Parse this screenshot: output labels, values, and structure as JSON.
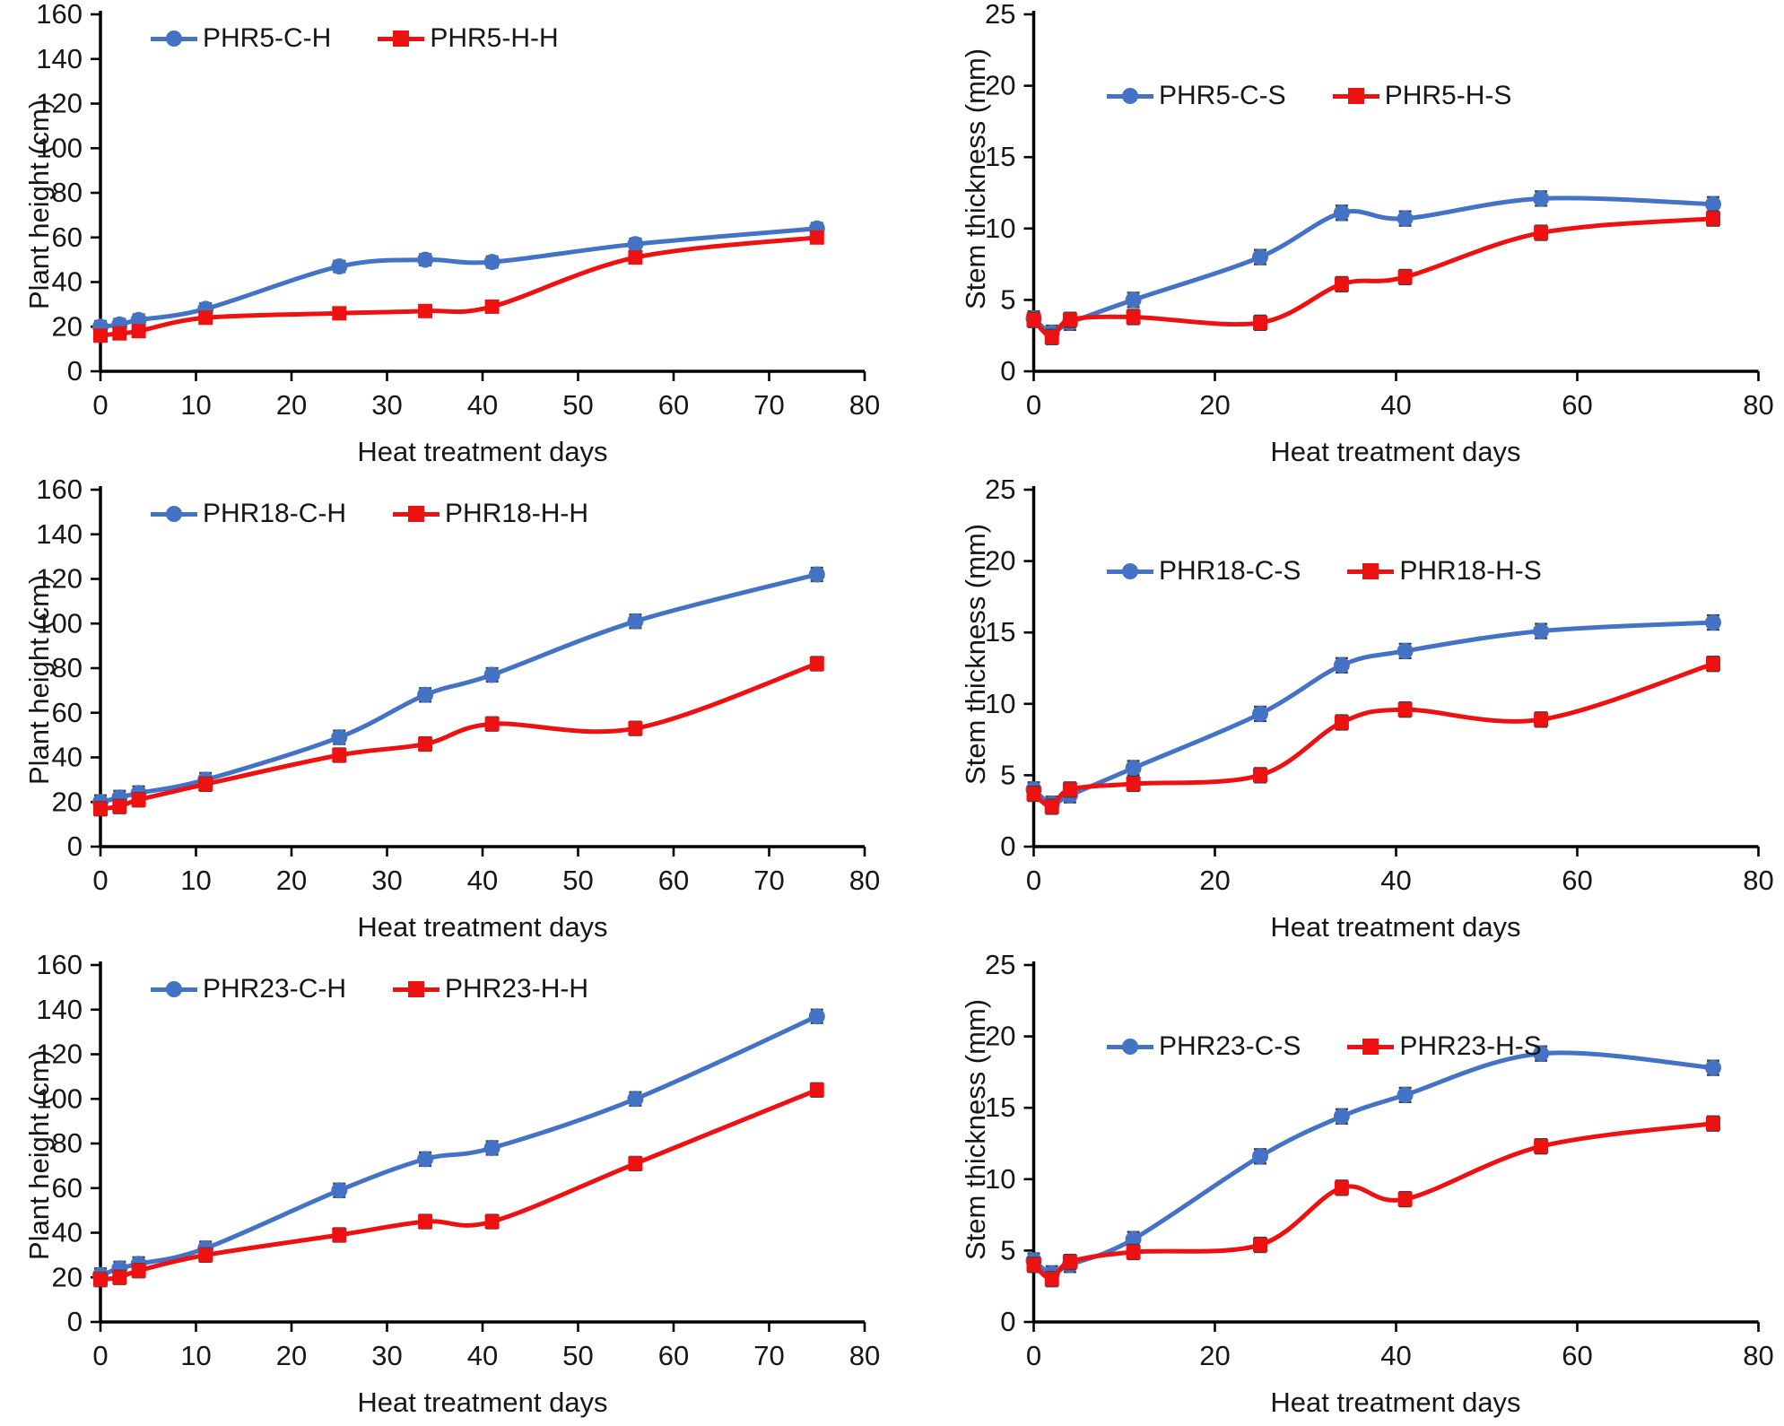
{
  "figure": {
    "x_axis_title": "Heat treatment days",
    "left_y_axis_title": "Plant height (cm)",
    "right_y_axis_title": "Stem thickness (mm)"
  },
  "colors": {
    "blue_series": "#4472C4",
    "red_series": "#EE1111",
    "error_bar": "#3f3f3f",
    "axis": "#000000",
    "text": "#161616"
  },
  "chart_data": [
    {
      "type": "line",
      "panel": "top-left",
      "xlabel": "Heat treatment days",
      "ylabel": "Plant height (cm)",
      "x": [
        0,
        2,
        4,
        11,
        25,
        34,
        41,
        56,
        75
      ],
      "xlim": [
        0,
        80
      ],
      "xticks": [
        0,
        10,
        20,
        30,
        40,
        50,
        60,
        70,
        80
      ],
      "ylim": [
        0,
        160
      ],
      "yticks": [
        0,
        20,
        40,
        60,
        80,
        100,
        120,
        140,
        160
      ],
      "grid": false,
      "legend_position": "top-left-inside",
      "err": 2.5,
      "series": [
        {
          "name": "PHR5-C-H",
          "color": "#4472C4",
          "marker": "circle",
          "values": [
            20,
            21,
            23,
            28,
            47,
            50,
            49,
            57,
            64
          ]
        },
        {
          "name": "PHR5-H-H",
          "color": "#EE1111",
          "marker": "square",
          "values": [
            16,
            17,
            18,
            24,
            26,
            27,
            29,
            51,
            60
          ]
        }
      ]
    },
    {
      "type": "line",
      "panel": "top-right",
      "xlabel": "Heat treatment days",
      "ylabel": "Stem thickness (mm)",
      "x": [
        0,
        2,
        4,
        11,
        25,
        34,
        41,
        56,
        75
      ],
      "xlim": [
        0,
        80
      ],
      "xticks": [
        0,
        20,
        40,
        60,
        80
      ],
      "ylim": [
        0,
        25
      ],
      "yticks": [
        0,
        5,
        10,
        15,
        20,
        25
      ],
      "grid": false,
      "legend_position": "top-left-inside",
      "err": 0.5,
      "series": [
        {
          "name": "PHR5-C-S",
          "color": "#4472C4",
          "marker": "circle",
          "values": [
            3.7,
            2.7,
            3.4,
            5.0,
            8.0,
            11.1,
            10.7,
            12.1,
            11.7
          ]
        },
        {
          "name": "PHR5-H-S",
          "color": "#EE1111",
          "marker": "square",
          "values": [
            3.6,
            2.4,
            3.6,
            3.8,
            3.4,
            6.1,
            6.6,
            9.7,
            10.7
          ]
        }
      ]
    },
    {
      "type": "line",
      "panel": "middle-left",
      "xlabel": "Heat treatment days",
      "ylabel": "Plant height (cm)",
      "x": [
        0,
        2,
        4,
        11,
        25,
        34,
        41,
        56,
        75
      ],
      "xlim": [
        0,
        80
      ],
      "xticks": [
        0,
        10,
        20,
        30,
        40,
        50,
        60,
        70,
        80
      ],
      "ylim": [
        0,
        160
      ],
      "yticks": [
        0,
        20,
        40,
        60,
        80,
        100,
        120,
        140,
        160
      ],
      "grid": false,
      "legend_position": "top-left-inside",
      "err": 3,
      "series": [
        {
          "name": "PHR18-C-H",
          "color": "#4472C4",
          "marker": "circle",
          "values": [
            20,
            22,
            24,
            30,
            49,
            68,
            77,
            101,
            122
          ]
        },
        {
          "name": "PHR18-H-H",
          "color": "#EE1111",
          "marker": "square",
          "values": [
            17,
            18,
            21,
            28,
            41,
            46,
            55,
            53,
            82
          ]
        }
      ]
    },
    {
      "type": "line",
      "panel": "middle-right",
      "xlabel": "Heat treatment days",
      "ylabel": "Stem thickness (mm)",
      "x": [
        0,
        2,
        4,
        11,
        25,
        34,
        41,
        56,
        75
      ],
      "xlim": [
        0,
        80
      ],
      "xticks": [
        0,
        20,
        40,
        60,
        80
      ],
      "ylim": [
        0,
        25
      ],
      "yticks": [
        0,
        5,
        10,
        15,
        20,
        25
      ],
      "grid": false,
      "legend_position": "top-left-inside",
      "err": 0.5,
      "series": [
        {
          "name": "PHR18-C-S",
          "color": "#4472C4",
          "marker": "circle",
          "values": [
            4.0,
            3.0,
            3.6,
            5.5,
            9.3,
            12.7,
            13.7,
            15.1,
            15.7
          ]
        },
        {
          "name": "PHR18-H-S",
          "color": "#EE1111",
          "marker": "square",
          "values": [
            3.7,
            2.8,
            4.0,
            4.4,
            5.0,
            8.7,
            9.6,
            8.9,
            12.8
          ]
        }
      ]
    },
    {
      "type": "line",
      "panel": "bottom-left",
      "xlabel": "Heat treatment days",
      "ylabel": "Plant height (cm)",
      "x": [
        0,
        2,
        4,
        11,
        25,
        34,
        41,
        56,
        75
      ],
      "xlim": [
        0,
        80
      ],
      "xticks": [
        0,
        10,
        20,
        30,
        40,
        50,
        60,
        70,
        80
      ],
      "ylim": [
        0,
        160
      ],
      "yticks": [
        0,
        20,
        40,
        60,
        80,
        100,
        120,
        140,
        160
      ],
      "grid": false,
      "legend_position": "top-left-inside",
      "err": 3,
      "series": [
        {
          "name": "PHR23-C-H",
          "color": "#4472C4",
          "marker": "circle",
          "values": [
            21,
            24,
            26,
            33,
            59,
            73,
            78,
            100,
            137
          ]
        },
        {
          "name": "PHR23-H-H",
          "color": "#EE1111",
          "marker": "square",
          "values": [
            19,
            20,
            23,
            30,
            39,
            45,
            45,
            71,
            104
          ]
        }
      ]
    },
    {
      "type": "line",
      "panel": "bottom-right",
      "xlabel": "Heat treatment days",
      "ylabel": "Stem thickness (mm)",
      "x": [
        0,
        2,
        4,
        11,
        25,
        34,
        41,
        56,
        75
      ],
      "xlim": [
        0,
        80
      ],
      "xticks": [
        0,
        20,
        40,
        60,
        80
      ],
      "ylim": [
        0,
        25
      ],
      "yticks": [
        0,
        5,
        10,
        15,
        20,
        25
      ],
      "grid": false,
      "legend_position": "top-left-inside",
      "err": 0.5,
      "series": [
        {
          "name": "PHR23-C-S",
          "color": "#4472C4",
          "marker": "circle",
          "values": [
            4.3,
            3.4,
            4.0,
            5.8,
            11.6,
            14.4,
            15.9,
            18.8,
            17.8
          ]
        },
        {
          "name": "PHR23-H-S",
          "color": "#EE1111",
          "marker": "square",
          "values": [
            4.0,
            3.0,
            4.2,
            4.9,
            5.4,
            9.4,
            8.6,
            12.3,
            13.9
          ]
        }
      ]
    }
  ]
}
